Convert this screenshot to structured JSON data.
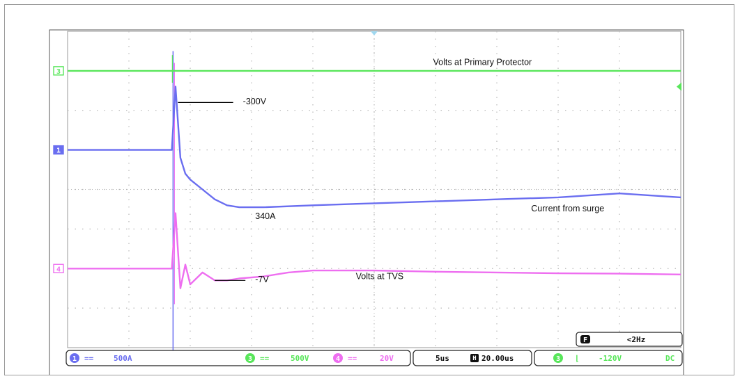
{
  "colors": {
    "ch1": "#6a6ef0",
    "ch3": "#58e65a",
    "ch4": "#ee6ef0",
    "grid": "#b8b8b8",
    "screen": "#ffffff"
  },
  "chart_data": {
    "type": "line",
    "xlim": [
      0,
      50
    ],
    "ylim": [
      -4,
      4
    ],
    "divisions": {
      "x": 10,
      "y": 8
    },
    "grid": true,
    "series": [
      {
        "name": "3",
        "key": "ch3",
        "x": [
          0,
          10,
          11,
          50
        ],
        "y": [
          3,
          3,
          3,
          3
        ]
      },
      {
        "name": "1",
        "key": "ch1",
        "x": [
          0,
          8.5,
          8.8,
          9.2,
          9.6,
          10,
          11,
          12,
          13,
          14,
          16,
          20,
          25,
          30,
          35,
          40,
          45,
          50
        ],
        "y": [
          1,
          1,
          2.6,
          0.8,
          0.4,
          0.25,
          0,
          -0.25,
          -0.4,
          -0.45,
          -0.45,
          -0.4,
          -0.35,
          -0.3,
          -0.25,
          -0.2,
          -0.1,
          -0.2
        ]
      },
      {
        "name": "4",
        "key": "ch4",
        "x": [
          0,
          8.5,
          8.8,
          9.2,
          9.6,
          10,
          11,
          12,
          13,
          14,
          16,
          18,
          20,
          25,
          30,
          35,
          40,
          45,
          50
        ],
        "y": [
          -2,
          -2,
          -0.6,
          -2.5,
          -1.9,
          -2.4,
          -2.1,
          -2.3,
          -2.3,
          -2.25,
          -2.2,
          -2.1,
          -2.05,
          -2.05,
          -2.08,
          -2.1,
          -2.12,
          -2.13,
          -2.15
        ]
      }
    ],
    "annotations": [
      {
        "text": "Volts at Primary Protector"
      },
      {
        "text": "-300V"
      },
      {
        "text": "Current from surge"
      },
      {
        "text": "340A"
      },
      {
        "text": "-7V"
      },
      {
        "text": "Volts at TVS"
      }
    ],
    "channel_markers": [
      {
        "label": "3",
        "key": "ch3"
      },
      {
        "label": "1",
        "key": "ch1"
      },
      {
        "label": "4",
        "key": "ch4"
      }
    ],
    "status": {
      "ch1_scale": "500A",
      "ch3_scale": "500V",
      "ch4_scale": "20V",
      "timebase": "5us",
      "position": "20.00us",
      "trigger_level": "-120V",
      "coupling": "DC",
      "frequency": "<2Hz",
      "ch1_num": "1",
      "ch3_num": "3",
      "ch4_num": "4",
      "trig_ch": "3",
      "freq_icon": "F",
      "h_icon": "H",
      "scale_symbol": "==",
      "trigger_symbol": "⌊"
    }
  }
}
